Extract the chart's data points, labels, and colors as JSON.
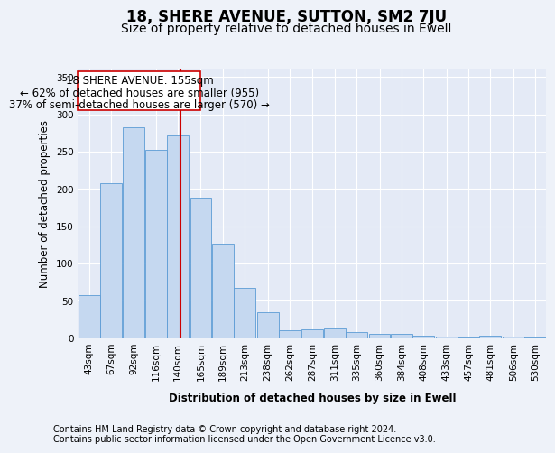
{
  "title": "18, SHERE AVENUE, SUTTON, SM2 7JU",
  "subtitle": "Size of property relative to detached houses in Ewell",
  "xlabel": "Distribution of detached houses by size in Ewell",
  "ylabel": "Number of detached properties",
  "footer_line1": "Contains HM Land Registry data © Crown copyright and database right 2024.",
  "footer_line2": "Contains public sector information licensed under the Open Government Licence v3.0.",
  "annotation_line1": "18 SHERE AVENUE: 155sqm",
  "annotation_line2": "← 62% of detached houses are smaller (955)",
  "annotation_line3": "37% of semi-detached houses are larger (570) →",
  "bar_color": "#c5d8f0",
  "bar_edge_color": "#5b9bd5",
  "vline_color": "#cc0000",
  "vline_position": 155,
  "categories": [
    "43sqm",
    "67sqm",
    "92sqm",
    "116sqm",
    "140sqm",
    "165sqm",
    "189sqm",
    "213sqm",
    "238sqm",
    "262sqm",
    "287sqm",
    "311sqm",
    "335sqm",
    "360sqm",
    "384sqm",
    "408sqm",
    "433sqm",
    "457sqm",
    "481sqm",
    "506sqm",
    "530sqm"
  ],
  "bin_edges": [
    43,
    67,
    92,
    116,
    140,
    165,
    189,
    213,
    238,
    262,
    287,
    311,
    335,
    360,
    384,
    408,
    433,
    457,
    481,
    506,
    530
  ],
  "values": [
    58,
    208,
    282,
    252,
    272,
    188,
    126,
    67,
    35,
    10,
    11,
    13,
    8,
    6,
    5,
    3,
    2,
    1,
    3,
    2,
    1
  ],
  "ylim": [
    0,
    360
  ],
  "yticks": [
    0,
    50,
    100,
    150,
    200,
    250,
    300,
    350
  ],
  "background_color": "#eef2f9",
  "plot_bg_color": "#e4eaf6",
  "grid_color": "#ffffff",
  "title_fontsize": 12,
  "subtitle_fontsize": 10,
  "axis_label_fontsize": 8.5,
  "tick_fontsize": 7.5,
  "footer_fontsize": 7,
  "annotation_fontsize": 8.5
}
